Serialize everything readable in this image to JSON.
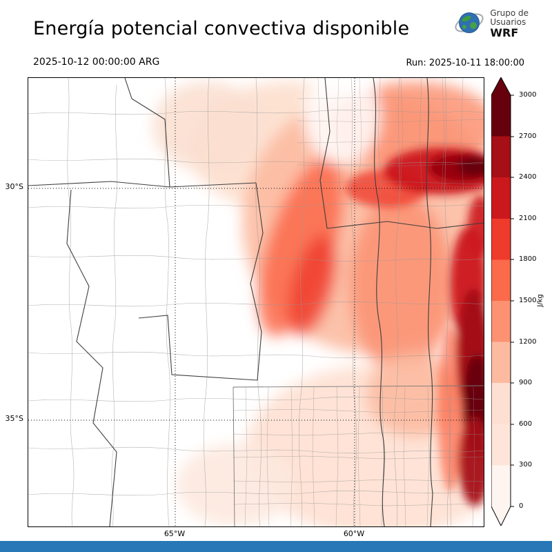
{
  "header": {
    "title": "Energía potencial convectiva disponible",
    "logo": {
      "line1": "Grupo de",
      "line2": "Usuarios",
      "line3": "WRF"
    }
  },
  "subheader": {
    "valid_time": "2025-10-12 00:00:00 ARG",
    "run": "Run: 2025-10-11 18:00:00"
  },
  "map": {
    "lat_ticks": [
      "30°S",
      "35°S"
    ],
    "lon_ticks": [
      "65°W",
      "60°W"
    ]
  },
  "colorbar": {
    "unit": "J/kg",
    "ticks": [
      "3000",
      "2700",
      "2400",
      "2100",
      "1800",
      "1500",
      "1200",
      "900",
      "600",
      "300",
      "0"
    ],
    "colors": [
      "#67000d",
      "#a50f15",
      "#cb181d",
      "#ef3b2c",
      "#fb6a4a",
      "#fc9272",
      "#fcbba1",
      "#fee0d2",
      "#fee5d9",
      "#fff5f0"
    ],
    "over_arrow_color": "#67000d",
    "under_arrow_color": "#fff5f0"
  },
  "footer": {
    "bar_color": "#2878b8"
  }
}
